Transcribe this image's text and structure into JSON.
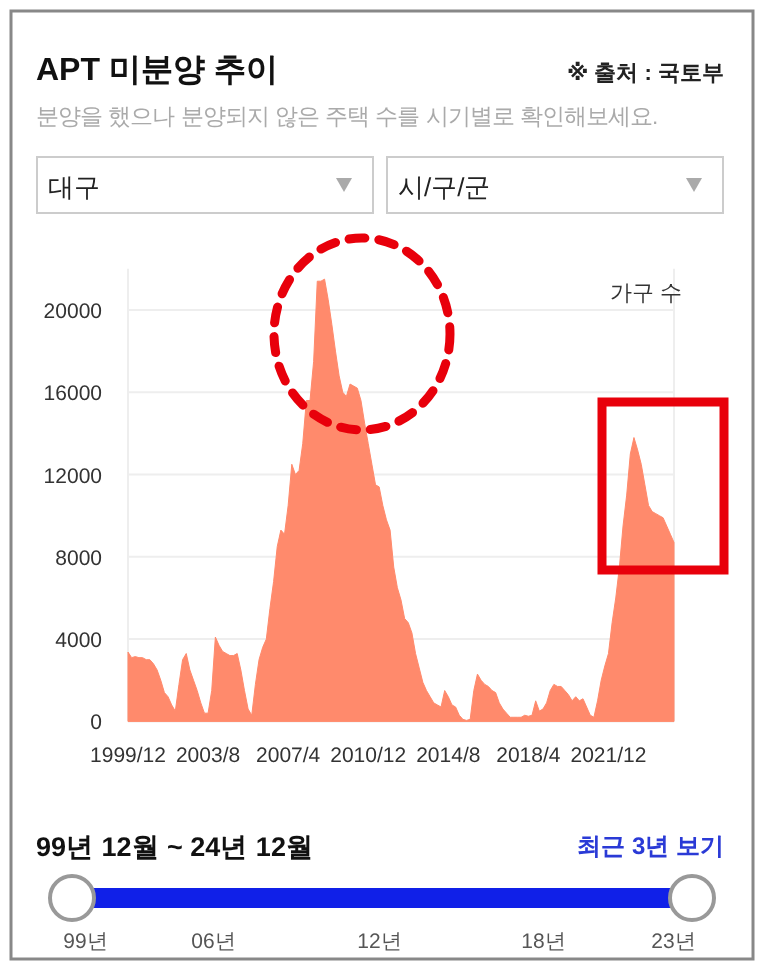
{
  "chart_data": {
    "type": "area",
    "title": "APT 미분양 추이",
    "subtitle": "분양을 했으나 분양되지 않은 주택 수를 시기별로 확인해보세요.",
    "ylabel": "가구 수",
    "annotations": [
      "※ 출처 : 국토부",
      "대구",
      "시/구/군",
      "99년 12월 ~ 24년 12월",
      "최근 3년 보기",
      "99년",
      "06년",
      "12년",
      "18년",
      "23년"
    ],
    "categories": [
      "1999/12",
      null,
      null,
      null,
      null,
      null,
      null,
      null,
      null,
      null,
      null,
      null,
      null,
      null,
      null,
      null,
      null,
      null,
      null,
      null,
      null,
      null,
      "2003/8",
      null,
      null,
      null,
      null,
      null,
      null,
      null,
      null,
      null,
      null,
      null,
      null,
      null,
      null,
      null,
      null,
      null,
      null,
      null,
      null,
      null,
      "2007/4",
      null,
      null,
      null,
      null,
      null,
      null,
      null,
      null,
      null,
      null,
      null,
      null,
      null,
      null,
      null,
      null,
      null,
      null,
      null,
      null,
      null,
      "2010/12",
      null,
      null,
      null,
      null,
      null,
      null,
      null,
      null,
      null,
      null,
      null,
      null,
      null,
      null,
      null,
      null,
      null,
      null,
      null,
      null,
      null,
      "2014/8",
      null,
      null,
      null,
      null,
      null,
      null,
      null,
      null,
      null,
      null,
      null,
      null,
      null,
      null,
      null,
      null,
      null,
      null,
      null,
      null,
      null,
      "2018/4",
      null,
      null,
      null,
      null,
      null,
      null,
      null,
      null,
      null,
      null,
      null,
      null,
      null,
      null,
      null,
      null,
      null,
      null,
      null,
      null,
      null,
      "2021/12",
      null,
      null,
      null,
      null,
      null,
      null,
      null,
      null,
      null,
      null,
      null,
      null,
      null,
      null,
      null,
      null,
      null,
      null
    ],
    "values": [
      3370,
      3100,
      3150,
      3100,
      3100,
      3000,
      3000,
      2800,
      2500,
      2000,
      1400,
      1200,
      800,
      500,
      1800,
      3000,
      3300,
      2500,
      2000,
      1500,
      900,
      400,
      400,
      1500,
      4100,
      3700,
      3400,
      3300,
      3200,
      3200,
      3300,
      2500,
      1500,
      600,
      300,
      1800,
      3000,
      3600,
      4000,
      5500,
      6800,
      8500,
      9300,
      9100,
      10500,
      12500,
      12000,
      12200,
      13500,
      15600,
      15600,
      17500,
      21400,
      21400,
      21500,
      20500,
      19300,
      18000,
      16800,
      16000,
      15800,
      16400,
      16300,
      16200,
      15600,
      14500,
      13500,
      12500,
      11500,
      11400,
      10500,
      9800,
      9300,
      7500,
      6500,
      5900,
      5000,
      4800,
      4300,
      3300,
      2600,
      1900,
      1500,
      1200,
      900,
      800,
      700,
      1500,
      1200,
      800,
      700,
      300,
      100,
      50,
      100,
      1500,
      2300,
      2000,
      1800,
      1700,
      1500,
      1400,
      900,
      600,
      400,
      200,
      200,
      200,
      200,
      300,
      250,
      300,
      1000,
      500,
      600,
      900,
      1500,
      1800,
      1700,
      1700,
      1500,
      1300,
      1000,
      1200,
      1000,
      1100,
      700,
      300,
      200,
      1000,
      2000,
      2700,
      3300,
      4800,
      6000,
      7500,
      9500,
      11000,
      13000,
      13800,
      13200,
      12500,
      11500,
      10500,
      10200,
      10100,
      10000,
      9900,
      9500,
      9100,
      8700
    ],
    "color": "#ff8a6c",
    "ylim": [
      0,
      22000
    ],
    "yticks": [
      0,
      4000,
      8000,
      12000,
      16000,
      20000
    ],
    "grid": "y"
  }
}
